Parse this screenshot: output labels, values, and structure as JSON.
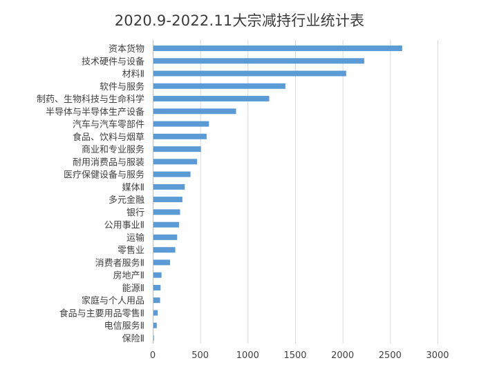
{
  "chart_data": {
    "type": "bar",
    "orientation": "horizontal",
    "title": "2020.9-2022.11大宗减持行业统计表",
    "xlabel": "",
    "ylabel": "",
    "xlim": [
      0,
      3000
    ],
    "x_ticks": [
      0,
      500,
      1000,
      1500,
      2000,
      2500,
      3000
    ],
    "grid": "vertical",
    "legend": "none",
    "bar_color": "#5b9bd5",
    "categories": [
      "资本货物",
      "技术硬件与设备",
      "材料Ⅱ",
      "软件与服务",
      "制药、生物科技与生命科学",
      "半导体与半导体生产设备",
      "汽车与汽车零部件",
      "食品、饮料与烟草",
      "商业和专业服务",
      "耐用消费品与服装",
      "医疗保健设备与服务",
      "媒体Ⅱ",
      "多元金融",
      "银行",
      "公用事业Ⅱ",
      "运输",
      "零售业",
      "消费者服务Ⅱ",
      "房地产Ⅱ",
      "能源Ⅱ",
      "家庭与个人用品",
      "食品与主要用品零售Ⅱ",
      "电信服务Ⅱ",
      "保险Ⅱ"
    ],
    "values": [
      2620,
      2220,
      2030,
      1390,
      1220,
      870,
      585,
      560,
      500,
      460,
      390,
      330,
      305,
      280,
      270,
      250,
      230,
      175,
      85,
      75,
      70,
      45,
      35,
      5
    ]
  }
}
